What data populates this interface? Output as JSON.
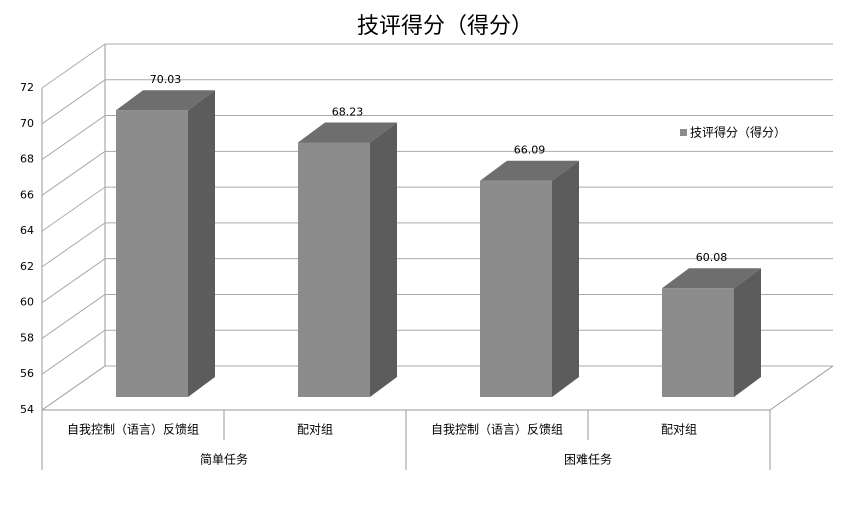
{
  "chart_data": {
    "type": "bar3d",
    "title": "技评得分（得分）",
    "categories": [
      "自我控制（语言）反馈组",
      "配对组",
      "自我控制（语言）反馈组",
      "配对组"
    ],
    "groups": [
      "简单任务",
      "困难任务"
    ],
    "series": [
      {
        "name": "技评得分（得分）",
        "color": "#8c8c8c",
        "values": [
          70.03,
          68.23,
          66.09,
          60.08
        ]
      }
    ],
    "ylim": [
      54,
      72
    ],
    "yticks": [
      54,
      56,
      58,
      60,
      62,
      64,
      66,
      68,
      70,
      72
    ],
    "grid": true,
    "legend": "right"
  }
}
